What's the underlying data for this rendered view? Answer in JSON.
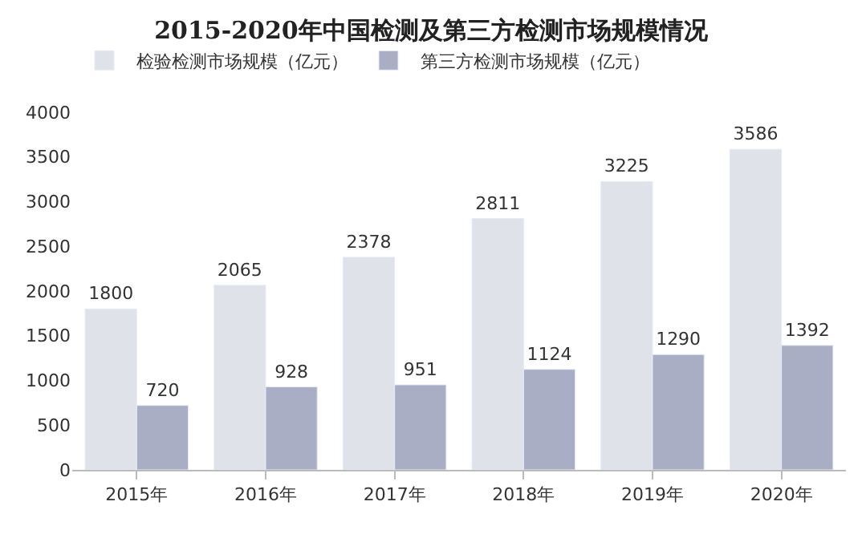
{
  "chart_data": {
    "type": "bar",
    "title": "2015-2020年中国检测及第三方检测市场规模情况",
    "categories": [
      "2015年",
      "2016年",
      "2017年",
      "2018年",
      "2019年",
      "2020年"
    ],
    "series": [
      {
        "name": "检验检测市场规模（亿元）",
        "color": "#e0e2ea",
        "values": [
          1800,
          2065,
          2378,
          2811,
          3225,
          3586
        ]
      },
      {
        "name": "第三方检测市场规模（亿元）",
        "color": "#aaaec4",
        "values": [
          720,
          928,
          951,
          1124,
          1290,
          1392
        ]
      }
    ],
    "ylim": [
      0,
      4000
    ],
    "yticks": [
      0,
      500,
      1000,
      1500,
      2000,
      2500,
      3000,
      3500,
      4000
    ],
    "data_labels": true,
    "legend": "top left",
    "grid": false
  }
}
